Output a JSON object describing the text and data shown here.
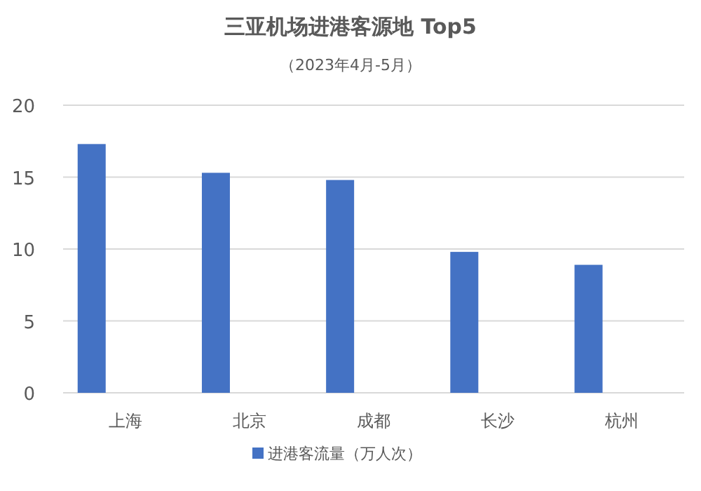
{
  "chart_data": {
    "type": "bar",
    "title": "三亚机场进港客源地 Top5",
    "subtitle": "（2023年4月-5月）",
    "categories": [
      "上海",
      "北京",
      "成都",
      "长沙",
      "杭州"
    ],
    "series": [
      {
        "name": "进港客流量（万人次）",
        "color": "#4472c4",
        "values": [
          17.3,
          15.3,
          14.8,
          9.8,
          8.9
        ]
      }
    ],
    "ylim": [
      0,
      20
    ],
    "yticks": [
      0,
      5,
      10,
      15,
      20
    ],
    "grid": "y",
    "legend": "bottom"
  }
}
